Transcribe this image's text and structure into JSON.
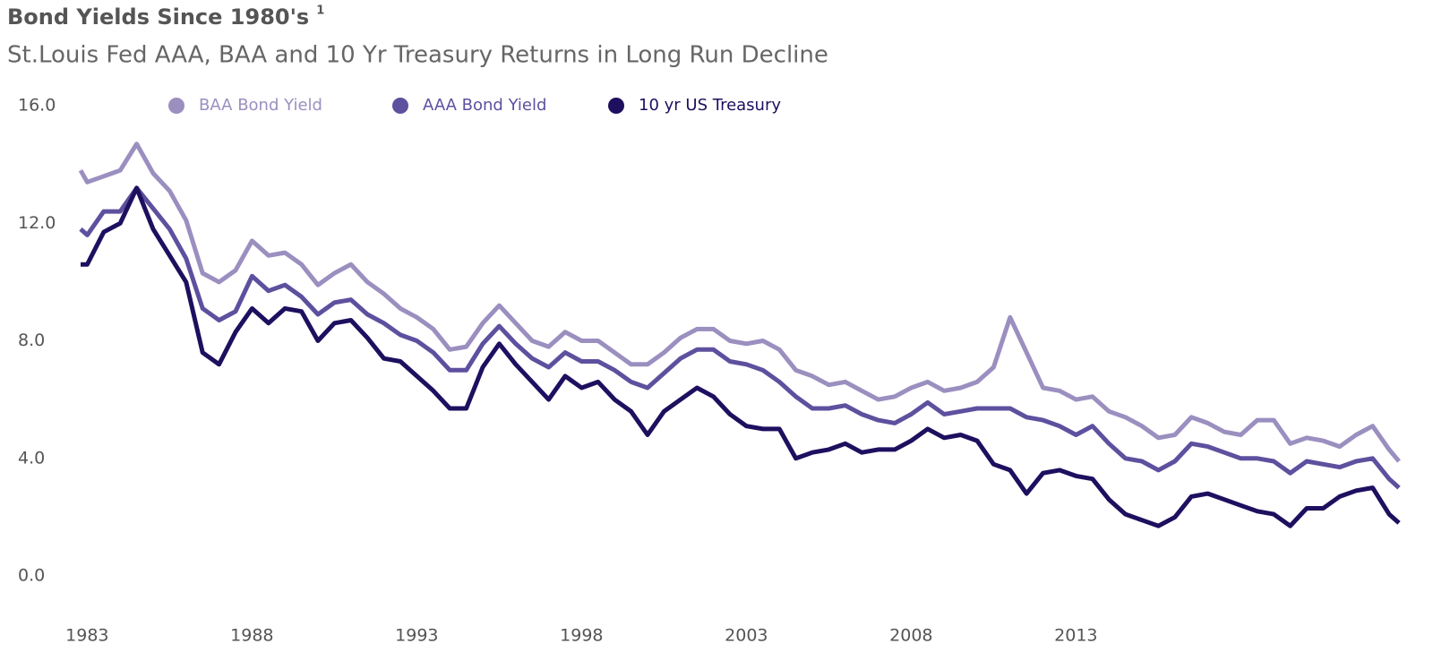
{
  "chart_data": {
    "type": "line",
    "title": "Bond Yields Since 1980's",
    "title_superscript": "1",
    "subtitle": "St.Louis Fed AAA, BAA and 10 Yr Treasury Returns in Long Run Decline",
    "x": [
      1982.8,
      1983,
      1983.5,
      1984,
      1984.5,
      1985,
      1985.5,
      1986,
      1986.5,
      1987,
      1987.5,
      1988,
      1988.5,
      1989,
      1989.5,
      1990,
      1990.5,
      1991,
      1991.5,
      1992,
      1992.5,
      1993,
      1993.5,
      1994,
      1994.5,
      1995,
      1995.5,
      1996,
      1996.5,
      1997,
      1997.5,
      1998,
      1998.5,
      1999,
      1999.5,
      2000,
      2000.5,
      2001,
      2001.5,
      2002,
      2002.5,
      2003,
      2003.5,
      2004,
      2004.5,
      2005,
      2005.5,
      2006,
      2006.5,
      2007,
      2007.5,
      2008,
      2008.5,
      2009,
      2009.5,
      2010,
      2010.5,
      2011,
      2011.5,
      2012,
      2012.5,
      2013,
      2013.5,
      2014,
      2014.5,
      2015,
      2015.5,
      2016,
      2016.5,
      2017,
      2017.5,
      2018,
      2018.5,
      2019,
      2019.5,
      2020,
      2020.5,
      2021,
      2021.5,
      2022,
      2022.5,
      2022.8
    ],
    "series": [
      {
        "name": "BAA Bond Yield",
        "color": "#9b8fc0",
        "values": [
          13.8,
          13.4,
          13.6,
          13.8,
          14.7,
          13.7,
          13.1,
          12.1,
          10.3,
          10.0,
          10.4,
          11.4,
          10.9,
          11.0,
          10.6,
          9.9,
          10.3,
          10.6,
          10.0,
          9.6,
          9.1,
          8.8,
          8.4,
          7.7,
          7.8,
          8.6,
          9.2,
          8.6,
          8.0,
          7.8,
          8.3,
          8.0,
          8.0,
          7.6,
          7.2,
          7.2,
          7.6,
          8.1,
          8.4,
          8.4,
          8.0,
          7.9,
          8.0,
          7.7,
          7.0,
          6.8,
          6.5,
          6.6,
          6.3,
          6.0,
          6.1,
          6.4,
          6.6,
          6.3,
          6.4,
          6.6,
          7.1,
          8.8,
          7.6,
          6.4,
          6.3,
          6.0,
          6.1,
          5.6,
          5.4,
          5.1,
          4.7,
          4.8,
          5.4,
          5.2,
          4.9,
          4.8,
          5.3,
          5.3,
          4.5,
          4.7,
          4.6,
          4.4,
          4.8,
          5.1,
          4.3,
          3.9
        ]
      },
      {
        "name": "AAA Bond Yield",
        "color": "#5e509e",
        "values": [
          11.8,
          11.6,
          12.4,
          12.4,
          13.2,
          12.5,
          11.8,
          10.8,
          9.1,
          8.7,
          9.0,
          10.2,
          9.7,
          9.9,
          9.5,
          8.9,
          9.3,
          9.4,
          8.9,
          8.6,
          8.2,
          8.0,
          7.6,
          7.0,
          7.0,
          7.9,
          8.5,
          7.9,
          7.4,
          7.1,
          7.6,
          7.3,
          7.3,
          7.0,
          6.6,
          6.4,
          6.9,
          7.4,
          7.7,
          7.7,
          7.3,
          7.2,
          7.0,
          6.6,
          6.1,
          5.7,
          5.7,
          5.8,
          5.5,
          5.3,
          5.2,
          5.5,
          5.9,
          5.5,
          5.6,
          5.7,
          5.7,
          5.7,
          5.4,
          5.3,
          5.1,
          4.8,
          5.1,
          4.5,
          4.0,
          3.9,
          3.6,
          3.9,
          4.5,
          4.4,
          4.2,
          4.0,
          4.0,
          3.9,
          3.5,
          3.9,
          3.8,
          3.7,
          3.9,
          4.0,
          3.3,
          3.0
        ]
      },
      {
        "name": "10 yr US Treasury",
        "color": "#1e0f5f",
        "values": [
          10.6,
          10.6,
          11.7,
          12.0,
          13.2,
          11.8,
          10.9,
          10.0,
          7.6,
          7.2,
          8.3,
          9.1,
          8.6,
          9.1,
          9.0,
          8.0,
          8.6,
          8.7,
          8.1,
          7.4,
          7.3,
          6.8,
          6.3,
          5.7,
          5.7,
          7.1,
          7.9,
          7.2,
          6.6,
          6.0,
          6.8,
          6.4,
          6.6,
          6.0,
          5.6,
          4.8,
          5.6,
          6.0,
          6.4,
          6.1,
          5.5,
          5.1,
          5.0,
          5.0,
          4.0,
          4.2,
          4.3,
          4.5,
          4.2,
          4.3,
          4.3,
          4.6,
          5.0,
          4.7,
          4.8,
          4.6,
          3.8,
          3.6,
          2.8,
          3.5,
          3.6,
          3.4,
          3.3,
          2.6,
          2.1,
          1.9,
          1.7,
          2.0,
          2.7,
          2.8,
          2.6,
          2.4,
          2.2,
          2.1,
          1.7,
          2.3,
          2.3,
          2.7,
          2.9,
          3.0,
          2.1,
          1.8
        ]
      }
    ],
    "xlim": [
      1982.8,
      2022.8
    ],
    "xticks": [
      1983,
      1988,
      1993,
      1998,
      2003,
      2008,
      2013
    ],
    "ylim": [
      0,
      16
    ],
    "yticks": [
      {
        "value": 0,
        "label": "0.0"
      },
      {
        "value": 4,
        "label": "4.0"
      },
      {
        "value": 8,
        "label": "8.0"
      },
      {
        "value": 12,
        "label": "12.0"
      },
      {
        "value": 16,
        "label": "16.0"
      }
    ],
    "grid": false,
    "legend": "top"
  }
}
